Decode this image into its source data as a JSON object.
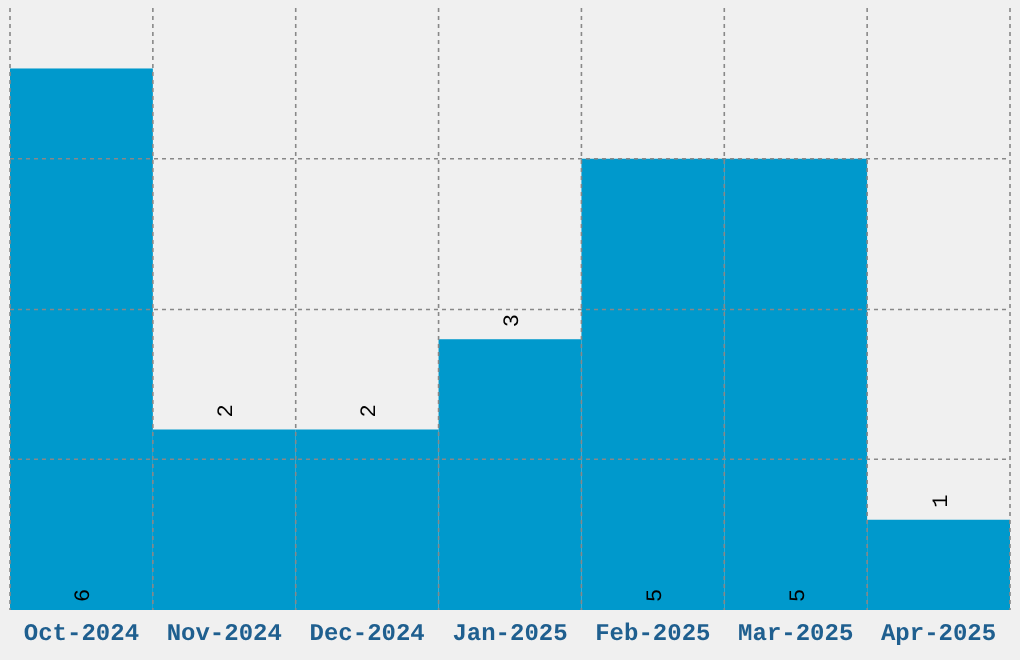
{
  "chart_data": {
    "type": "bar",
    "categories": [
      "Oct-2024",
      "Nov-2024",
      "Dec-2024",
      "Jan-2025",
      "Feb-2025",
      "Mar-2025",
      "Apr-2025"
    ],
    "values": [
      6,
      2,
      2,
      3,
      5,
      5,
      1
    ],
    "color": "#0099cc",
    "ylim": [
      0,
      6.67
    ],
    "yticks": [
      {
        "value": 1.67,
        "label": null
      },
      {
        "value": 3.33,
        "label": null
      },
      {
        "value": 5,
        "label": null
      }
    ],
    "tick_labels": "x",
    "grid": true,
    "data_labels": true
  }
}
